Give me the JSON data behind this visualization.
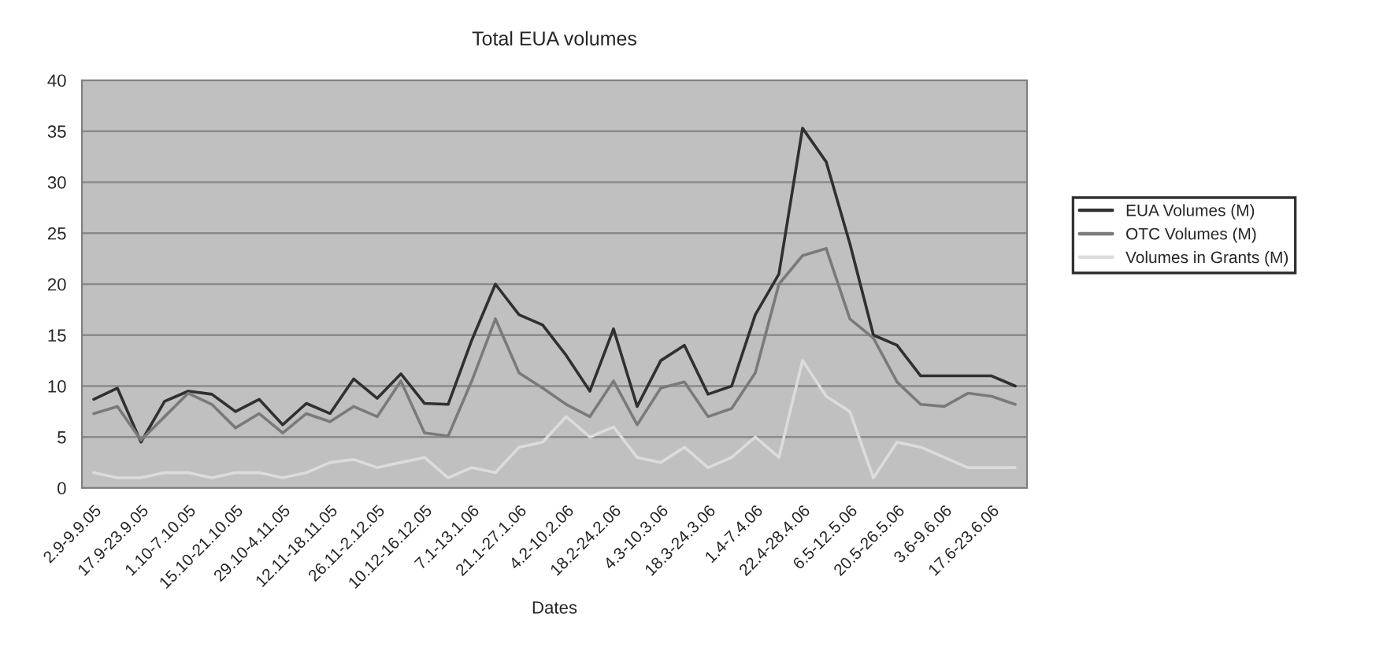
{
  "chart_data": {
    "type": "line",
    "title": "Total EUA volumes",
    "xlabel": "Dates",
    "categories": [
      "2.9-9.9.05",
      null,
      "17.9-23.9.05",
      null,
      "1.10-7.10.05",
      null,
      "15.10-21.10.05",
      null,
      "29.10-4.11.05",
      null,
      "12.11-18.11.05",
      null,
      "26.11-2.12.05",
      null,
      "10.12-16.12.05",
      null,
      "7.1-13.1.06",
      null,
      "21.1-27.1.06",
      null,
      "4.2-10.2.06",
      null,
      "18.2-24.2.06",
      null,
      "4.3-10.3.06",
      null,
      "18.3-24.3.06",
      null,
      "1.4-7.4.06",
      null,
      "22.4-28.4.06",
      null,
      "6.5-12.5.06",
      null,
      "20.5-26.5.06",
      null,
      "3.6-9.6.06",
      null,
      "17.6-23.6.06",
      null
    ],
    "series": [
      {
        "name": "EUA Volumes (M)",
        "color": "#303030",
        "values": [
          8.7,
          9.8,
          4.5,
          8.5,
          9.5,
          9.2,
          7.5,
          8.7,
          6.2,
          8.3,
          7.3,
          10.7,
          8.8,
          11.2,
          8.3,
          8.2,
          14.5,
          20,
          17,
          16,
          13,
          9.5,
          15.6,
          8,
          12.5,
          14,
          9.2,
          10,
          17,
          21,
          35.3,
          32,
          24,
          15,
          14,
          11,
          11,
          11,
          11,
          10
        ]
      },
      {
        "name": "OTC Volumes (M)",
        "color": "#7a7a7a",
        "values": [
          7.3,
          8,
          4.7,
          7,
          9.3,
          8.2,
          5.9,
          7.3,
          5.4,
          7.3,
          6.5,
          8,
          7,
          10.5,
          5.4,
          5.1,
          10.5,
          16.6,
          11.3,
          9.8,
          8.2,
          7,
          10.5,
          6.2,
          9.8,
          10.4,
          7,
          7.8,
          11.3,
          20,
          22.8,
          23.5,
          16.6,
          14.7,
          10.4,
          8.2,
          8,
          9.3,
          9,
          8.2
        ]
      },
      {
        "name": "Volumes in Grants (M)",
        "color": "#dcdcdc",
        "values": [
          1.5,
          1,
          1,
          1.5,
          1.5,
          1,
          1.5,
          1.5,
          1,
          1.5,
          2.5,
          2.8,
          2,
          2.5,
          3,
          1,
          2,
          1.5,
          4,
          4.5,
          7,
          5,
          6,
          3,
          2.5,
          4,
          2,
          3,
          5,
          3,
          12.5,
          9,
          7.5,
          1,
          4.5,
          4,
          3,
          2,
          2,
          2
        ]
      }
    ],
    "ylim": [
      0,
      40
    ],
    "yticks": [
      0,
      5,
      10,
      15,
      20,
      25,
      30,
      35,
      40
    ],
    "grid": "y",
    "legend": "right",
    "marker": "none",
    "line_style": "solid"
  }
}
